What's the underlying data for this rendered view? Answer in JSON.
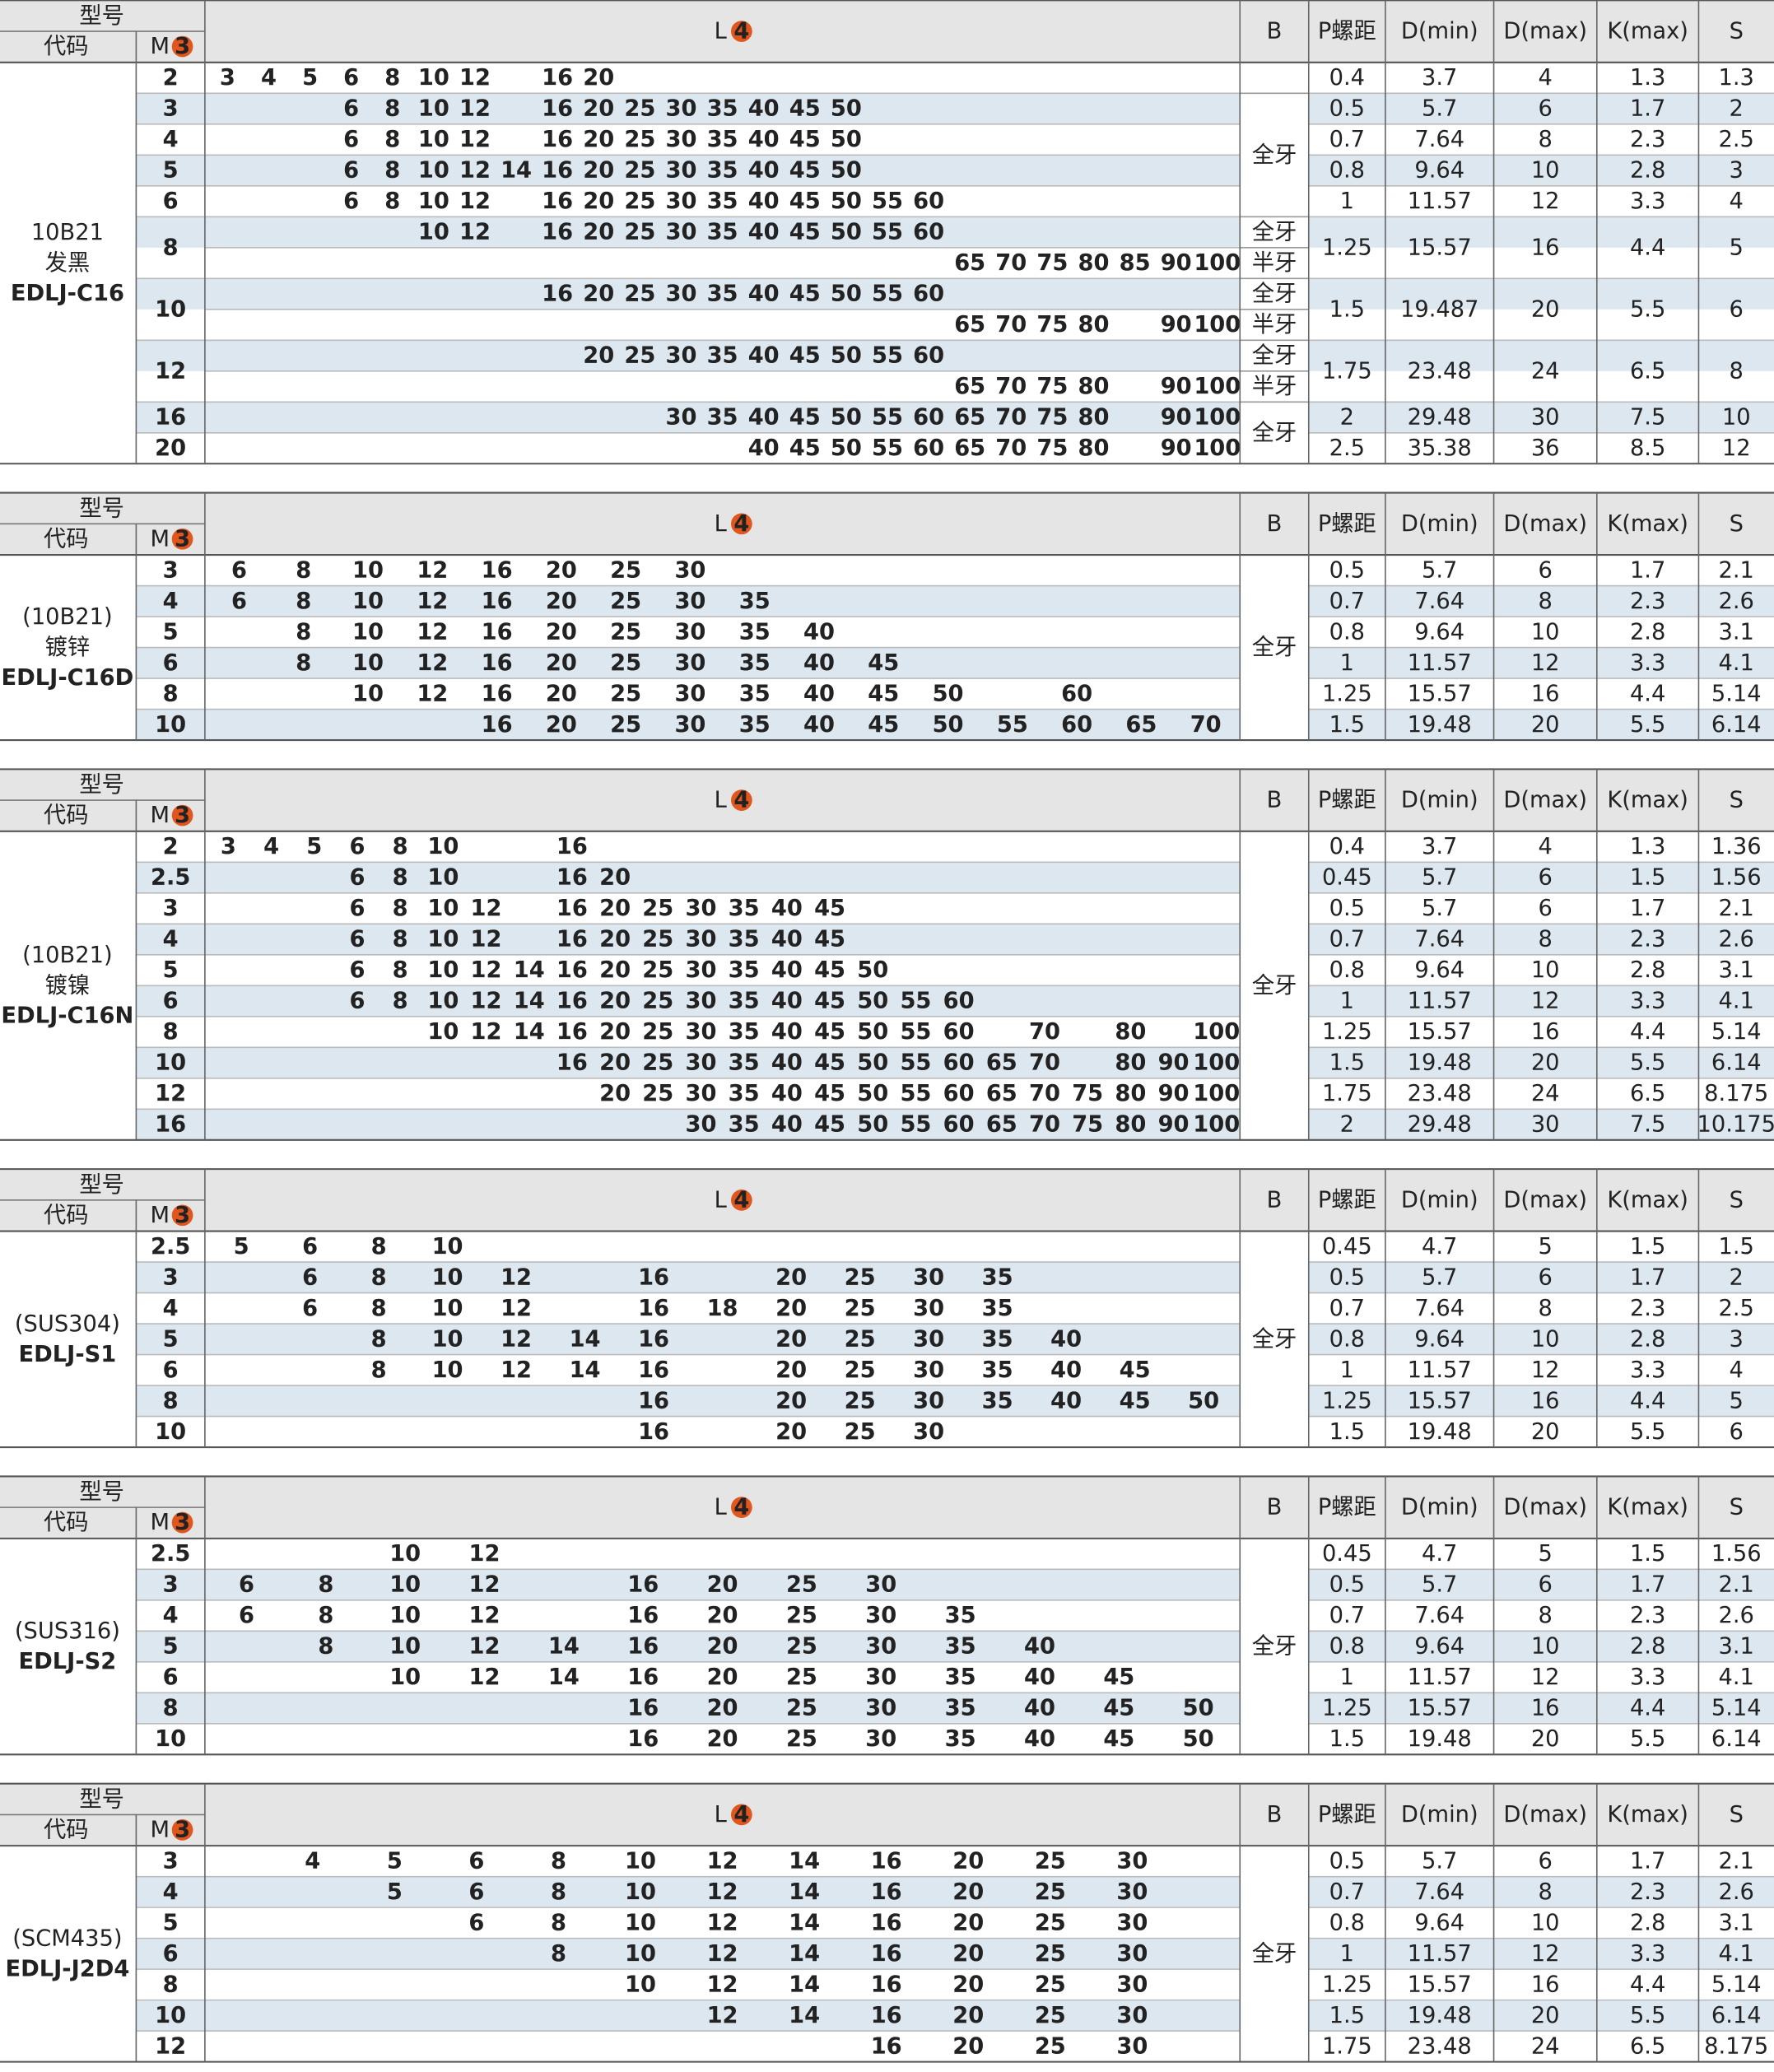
{
  "header": {
    "model": "型号",
    "code": "代码",
    "m": "M",
    "m_badge": "3",
    "l": "L",
    "l_badge": "4",
    "b": "B",
    "p": "P螺距",
    "dmin": "D(min)",
    "dmax": "D(max)",
    "k": "K(max)",
    "s": "S"
  },
  "tables": [
    {
      "material": [
        "10B21",
        "发黑"
      ],
      "code": "EDLJ-C16",
      "rows": [
        {
          "m": 2,
          "l": [
            3,
            4,
            5,
            6,
            8,
            10,
            12,
            16,
            20
          ],
          "b": null,
          "p": 0.4,
          "dmin": 3.7,
          "dmax": 4,
          "k": 1.3,
          "s": 1.3
        },
        {
          "m": 3,
          "l": [
            6,
            8,
            10,
            12,
            16,
            20,
            25,
            30,
            35,
            40,
            45,
            50
          ],
          "b": "全牙",
          "p": 0.5,
          "dmin": 5.7,
          "dmax": 6,
          "k": 1.7,
          "s": 2
        },
        {
          "m": 4,
          "l": [
            6,
            8,
            10,
            12,
            16,
            20,
            25,
            30,
            35,
            40,
            45,
            50
          ],
          "p": 0.7,
          "dmin": 7.64,
          "dmax": 8,
          "k": 2.3,
          "s": 2.5
        },
        {
          "m": 5,
          "l": [
            6,
            8,
            10,
            12,
            14,
            16,
            20,
            25,
            30,
            35,
            40,
            45,
            50
          ],
          "p": 0.8,
          "dmin": 9.64,
          "dmax": 10,
          "k": 2.8,
          "s": 3
        },
        {
          "m": 6,
          "l": [
            6,
            8,
            10,
            12,
            16,
            20,
            25,
            30,
            35,
            40,
            45,
            50,
            55,
            60
          ],
          "p": 1,
          "dmin": 11.57,
          "dmax": 12,
          "k": 3.3,
          "s": 4
        },
        {
          "m": 8,
          "lines": [
            {
              "b": "全牙",
              "l": [
                10,
                12,
                16,
                20,
                25,
                30,
                35,
                40,
                45,
                50,
                55,
                60
              ]
            },
            {
              "b": "半牙",
              "l": [
                65,
                70,
                75,
                80,
                85,
                90,
                100
              ]
            }
          ],
          "p": 1.25,
          "dmin": 15.57,
          "dmax": 16,
          "k": 4.4,
          "s": 5
        },
        {
          "m": 10,
          "lines": [
            {
              "b": "全牙",
              "l": [
                16,
                20,
                25,
                30,
                35,
                40,
                45,
                50,
                55,
                60
              ]
            },
            {
              "b": "半牙",
              "l": [
                65,
                70,
                75,
                80,
                90,
                100
              ]
            }
          ],
          "p": 1.5,
          "dmin": 19.487,
          "dmax": 20,
          "k": 5.5,
          "s": 6
        },
        {
          "m": 12,
          "lines": [
            {
              "b": "全牙",
              "l": [
                20,
                25,
                30,
                35,
                40,
                45,
                50,
                55,
                60
              ]
            },
            {
              "b": "半牙",
              "l": [
                65,
                70,
                75,
                80,
                90,
                100
              ]
            }
          ],
          "p": 1.75,
          "dmin": 23.48,
          "dmax": 24,
          "k": 6.5,
          "s": 8
        },
        {
          "m": 16,
          "l": [
            30,
            35,
            40,
            45,
            50,
            55,
            60,
            65,
            70,
            75,
            80,
            90,
            100
          ],
          "b": "全牙",
          "p": 2,
          "dmin": 29.48,
          "dmax": 30,
          "k": 7.5,
          "s": 10
        },
        {
          "m": 20,
          "l": [
            40,
            45,
            50,
            55,
            60,
            65,
            70,
            75,
            80,
            90,
            100
          ],
          "p": 2.5,
          "dmin": 35.38,
          "dmax": 36,
          "k": 8.5,
          "s": 12
        }
      ]
    },
    {
      "material": [
        "(10B21)",
        "镀锌"
      ],
      "code": "EDLJ-C16D",
      "rows": [
        {
          "m": 3,
          "l": [
            6,
            8,
            10,
            12,
            16,
            20,
            25,
            30
          ],
          "b": "全牙",
          "p": 0.5,
          "dmin": 5.7,
          "dmax": 6,
          "k": 1.7,
          "s": 2.1
        },
        {
          "m": 4,
          "l": [
            6,
            8,
            10,
            12,
            16,
            20,
            25,
            30,
            35
          ],
          "p": 0.7,
          "dmin": 7.64,
          "dmax": 8,
          "k": 2.3,
          "s": 2.6
        },
        {
          "m": 5,
          "l": [
            8,
            10,
            12,
            16,
            20,
            25,
            30,
            35,
            40
          ],
          "p": 0.8,
          "dmin": 9.64,
          "dmax": 10,
          "k": 2.8,
          "s": 3.1
        },
        {
          "m": 6,
          "l": [
            8,
            10,
            12,
            16,
            20,
            25,
            30,
            35,
            40,
            45
          ],
          "p": 1,
          "dmin": 11.57,
          "dmax": 12,
          "k": 3.3,
          "s": 4.1
        },
        {
          "m": 8,
          "l": [
            10,
            12,
            16,
            20,
            25,
            30,
            35,
            40,
            45,
            50,
            60
          ],
          "p": 1.25,
          "dmin": 15.57,
          "dmax": 16,
          "k": 4.4,
          "s": 5.14
        },
        {
          "m": 10,
          "l": [
            16,
            20,
            25,
            30,
            35,
            40,
            45,
            50,
            55,
            60,
            65,
            70
          ],
          "p": 1.5,
          "dmin": 19.48,
          "dmax": 20,
          "k": 5.5,
          "s": 6.14
        }
      ]
    },
    {
      "material": [
        "(10B21)",
        "镀镍"
      ],
      "code": "EDLJ-C16N",
      "rows": [
        {
          "m": 2,
          "l": [
            3,
            4,
            5,
            6,
            8,
            10,
            16
          ],
          "b": "全牙",
          "p": 0.4,
          "dmin": 3.7,
          "dmax": 4,
          "k": 1.3,
          "s": 1.36
        },
        {
          "m": 2.5,
          "l": [
            6,
            8,
            10,
            16,
            20
          ],
          "p": 0.45,
          "dmin": 5.7,
          "dmax": 6,
          "k": 1.5,
          "s": 1.56
        },
        {
          "m": 3,
          "l": [
            6,
            8,
            10,
            12,
            16,
            20,
            25,
            30,
            35,
            40,
            45
          ],
          "p": 0.5,
          "dmin": 5.7,
          "dmax": 6,
          "k": 1.7,
          "s": 2.1
        },
        {
          "m": 4,
          "l": [
            6,
            8,
            10,
            12,
            16,
            20,
            25,
            30,
            35,
            40,
            45
          ],
          "p": 0.7,
          "dmin": 7.64,
          "dmax": 8,
          "k": 2.3,
          "s": 2.6
        },
        {
          "m": 5,
          "l": [
            6,
            8,
            10,
            12,
            14,
            16,
            20,
            25,
            30,
            35,
            40,
            45,
            50
          ],
          "p": 0.8,
          "dmin": 9.64,
          "dmax": 10,
          "k": 2.8,
          "s": 3.1
        },
        {
          "m": 6,
          "l": [
            6,
            8,
            10,
            12,
            14,
            16,
            20,
            25,
            30,
            35,
            40,
            45,
            50,
            55,
            60
          ],
          "p": 1,
          "dmin": 11.57,
          "dmax": 12,
          "k": 3.3,
          "s": 4.1
        },
        {
          "m": 8,
          "l": [
            10,
            12,
            14,
            16,
            20,
            25,
            30,
            35,
            40,
            45,
            50,
            55,
            60,
            70,
            80,
            100
          ],
          "p": 1.25,
          "dmin": 15.57,
          "dmax": 16,
          "k": 4.4,
          "s": 5.14
        },
        {
          "m": 10,
          "l": [
            16,
            20,
            25,
            30,
            35,
            40,
            45,
            50,
            55,
            60,
            65,
            70,
            80,
            90,
            100
          ],
          "p": 1.5,
          "dmin": 19.48,
          "dmax": 20,
          "k": 5.5,
          "s": 6.14
        },
        {
          "m": 12,
          "l": [
            20,
            25,
            30,
            35,
            40,
            45,
            50,
            55,
            60,
            65,
            70,
            75,
            80,
            90,
            100
          ],
          "p": 1.75,
          "dmin": 23.48,
          "dmax": 24,
          "k": 6.5,
          "s": 8.175
        },
        {
          "m": 16,
          "l": [
            30,
            35,
            40,
            45,
            50,
            55,
            60,
            65,
            70,
            75,
            80,
            90,
            100
          ],
          "p": 2,
          "dmin": 29.48,
          "dmax": 30,
          "k": 7.5,
          "s": 10.175
        }
      ]
    },
    {
      "material": [
        "(SUS304)"
      ],
      "code": "EDLJ-S1",
      "rows": [
        {
          "m": 2.5,
          "l": [
            5,
            6,
            8,
            10
          ],
          "b": "全牙",
          "p": 0.45,
          "dmin": 4.7,
          "dmax": 5,
          "k": 1.5,
          "s": 1.5
        },
        {
          "m": 3,
          "l": [
            6,
            8,
            10,
            12,
            16,
            20,
            25,
            30,
            35
          ],
          "p": 0.5,
          "dmin": 5.7,
          "dmax": 6,
          "k": 1.7,
          "s": 2
        },
        {
          "m": 4,
          "l": [
            6,
            8,
            10,
            12,
            16,
            18,
            20,
            25,
            30,
            35
          ],
          "p": 0.7,
          "dmin": 7.64,
          "dmax": 8,
          "k": 2.3,
          "s": 2.5
        },
        {
          "m": 5,
          "l": [
            8,
            10,
            12,
            14,
            16,
            20,
            25,
            30,
            35,
            40
          ],
          "p": 0.8,
          "dmin": 9.64,
          "dmax": 10,
          "k": 2.8,
          "s": 3
        },
        {
          "m": 6,
          "l": [
            8,
            10,
            12,
            14,
            16,
            20,
            25,
            30,
            35,
            40,
            45
          ],
          "p": 1,
          "dmin": 11.57,
          "dmax": 12,
          "k": 3.3,
          "s": 4
        },
        {
          "m": 8,
          "l": [
            16,
            20,
            25,
            30,
            35,
            40,
            45,
            50
          ],
          "p": 1.25,
          "dmin": 15.57,
          "dmax": 16,
          "k": 4.4,
          "s": 5
        },
        {
          "m": 10,
          "l": [
            16,
            20,
            25,
            30
          ],
          "p": 1.5,
          "dmin": 19.48,
          "dmax": 20,
          "k": 5.5,
          "s": 6
        }
      ]
    },
    {
      "material": [
        "(SUS316)"
      ],
      "code": "EDLJ-S2",
      "rows": [
        {
          "m": 2.5,
          "l": [
            10,
            12
          ],
          "b": "全牙",
          "p": 0.45,
          "dmin": 4.7,
          "dmax": 5,
          "k": 1.5,
          "s": 1.56
        },
        {
          "m": 3,
          "l": [
            6,
            8,
            10,
            12,
            16,
            20,
            25,
            30
          ],
          "p": 0.5,
          "dmin": 5.7,
          "dmax": 6,
          "k": 1.7,
          "s": 2.1
        },
        {
          "m": 4,
          "l": [
            6,
            8,
            10,
            12,
            16,
            20,
            25,
            30,
            35
          ],
          "p": 0.7,
          "dmin": 7.64,
          "dmax": 8,
          "k": 2.3,
          "s": 2.6
        },
        {
          "m": 5,
          "l": [
            8,
            10,
            12,
            14,
            16,
            20,
            25,
            30,
            35,
            40
          ],
          "p": 0.8,
          "dmin": 9.64,
          "dmax": 10,
          "k": 2.8,
          "s": 3.1
        },
        {
          "m": 6,
          "l": [
            10,
            12,
            14,
            16,
            20,
            25,
            30,
            35,
            40,
            45
          ],
          "p": 1,
          "dmin": 11.57,
          "dmax": 12,
          "k": 3.3,
          "s": 4.1
        },
        {
          "m": 8,
          "l": [
            16,
            20,
            25,
            30,
            35,
            40,
            45,
            50
          ],
          "p": 1.25,
          "dmin": 15.57,
          "dmax": 16,
          "k": 4.4,
          "s": 5.14
        },
        {
          "m": 10,
          "l": [
            16,
            20,
            25,
            30,
            35,
            40,
            45,
            50
          ],
          "p": 1.5,
          "dmin": 19.48,
          "dmax": 20,
          "k": 5.5,
          "s": 6.14
        }
      ]
    },
    {
      "material": [
        "(SCM435)"
      ],
      "code": "EDLJ-J2D4",
      "rows": [
        {
          "m": 3,
          "l": [
            4,
            5,
            6,
            8,
            10,
            12,
            14,
            16,
            20,
            25,
            30
          ],
          "b": "全牙",
          "p": 0.5,
          "dmin": 5.7,
          "dmax": 6,
          "k": 1.7,
          "s": 2.1
        },
        {
          "m": 4,
          "l": [
            5,
            6,
            8,
            10,
            12,
            14,
            16,
            20,
            25,
            30
          ],
          "p": 0.7,
          "dmin": 7.64,
          "dmax": 8,
          "k": 2.3,
          "s": 2.6
        },
        {
          "m": 5,
          "l": [
            6,
            8,
            10,
            12,
            14,
            16,
            20,
            25,
            30
          ],
          "p": 0.8,
          "dmin": 9.64,
          "dmax": 10,
          "k": 2.8,
          "s": 3.1
        },
        {
          "m": 6,
          "l": [
            8,
            10,
            12,
            14,
            16,
            20,
            25,
            30
          ],
          "p": 1,
          "dmin": 11.57,
          "dmax": 12,
          "k": 3.3,
          "s": 4.1
        },
        {
          "m": 8,
          "l": [
            10,
            12,
            14,
            16,
            20,
            25,
            30
          ],
          "p": 1.25,
          "dmin": 15.57,
          "dmax": 16,
          "k": 4.4,
          "s": 5.14
        },
        {
          "m": 10,
          "l": [
            12,
            14,
            16,
            20,
            25,
            30
          ],
          "p": 1.5,
          "dmin": 19.48,
          "dmax": 20,
          "k": 5.5,
          "s": 6.14
        },
        {
          "m": 12,
          "l": [
            16,
            20,
            25,
            30
          ],
          "p": 1.75,
          "dmin": 23.48,
          "dmax": 24,
          "k": 6.5,
          "s": 8.175
        }
      ]
    }
  ]
}
